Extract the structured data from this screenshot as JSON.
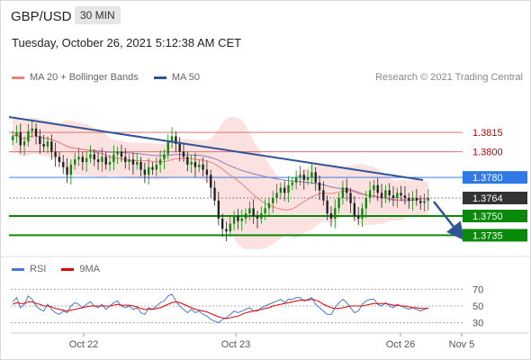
{
  "header": {
    "symbol": "GBP/USD",
    "timeframe": "30 MIN"
  },
  "datetime": "Tuesday, October 26, 2021 5:12:38 AM CET",
  "legend": {
    "items": [
      {
        "label": "MA 20 + Bollinger Bands",
        "color": "#f08080"
      },
      {
        "label": "MA 50",
        "color": "#2f5597"
      }
    ],
    "credit": "Research © 2021 Trading Central"
  },
  "rsi_legend": {
    "items": [
      {
        "label": "RSI",
        "color": "#4a78d8"
      },
      {
        "label": "9MA",
        "color": "#e00000"
      }
    ]
  },
  "chart_data": [
    {
      "type": "line",
      "title": "GBP/USD",
      "ylim": [
        1.3722,
        1.3848
      ],
      "levels": [
        {
          "value": 1.3815,
          "label": "1.3815",
          "kind": "resistance",
          "color": "#e07070",
          "label_color": "#c00000"
        },
        {
          "value": 1.38,
          "label": "1.3800",
          "kind": "resistance",
          "color": "#e07070",
          "label_color": "#c00000"
        },
        {
          "value": 1.378,
          "label": "1.3780",
          "kind": "pivot",
          "color": "#3d7de6",
          "label_bg": "#2f78e8"
        },
        {
          "value": 1.3764,
          "label": "1.3764",
          "kind": "current",
          "color": "#888888",
          "label_bg": "#333333"
        },
        {
          "value": 1.375,
          "label": "1.3750",
          "kind": "support",
          "color": "#0a8a0a",
          "label_bg": "#0a8a0a"
        },
        {
          "value": 1.3735,
          "label": "1.3735",
          "kind": "support",
          "color": "#0a8a0a",
          "label_bg": "#0a8a0a"
        }
      ],
      "x_ticks": [
        "Oct 22",
        "Oct 23",
        "Oct 26",
        "Nov 5"
      ],
      "trendline": {
        "start": 1.3827,
        "end": 1.3778
      },
      "close": [
        1.3812,
        1.3815,
        1.3805,
        1.3808,
        1.3816,
        1.3818,
        1.3812,
        1.3806,
        1.3804,
        1.3808,
        1.38,
        1.3796,
        1.3792,
        1.3788,
        1.3782,
        1.379,
        1.3794,
        1.3796,
        1.3792,
        1.3795,
        1.3798,
        1.3794,
        1.3792,
        1.3796,
        1.379,
        1.3792,
        1.3798,
        1.38,
        1.3796,
        1.3792,
        1.3794,
        1.379,
        1.3792,
        1.3786,
        1.3782,
        1.3788,
        1.3786,
        1.379,
        1.3794,
        1.3798,
        1.3808,
        1.3812,
        1.3806,
        1.38,
        1.3796,
        1.379,
        1.3792,
        1.3788,
        1.379,
        1.3786,
        1.3782,
        1.3772,
        1.3762,
        1.3748,
        1.374,
        1.3738,
        1.3744,
        1.375,
        1.3746,
        1.3748,
        1.3752,
        1.3756,
        1.375,
        1.3748,
        1.3752,
        1.3756,
        1.376,
        1.3764,
        1.3768,
        1.3772,
        1.3768,
        1.3774,
        1.3776,
        1.378,
        1.3782,
        1.3778,
        1.378,
        1.3784,
        1.3776,
        1.377,
        1.3762,
        1.3752,
        1.3748,
        1.3756,
        1.3764,
        1.3772,
        1.3768,
        1.376,
        1.375,
        1.3748,
        1.3756,
        1.3764,
        1.377,
        1.3774,
        1.3768,
        1.3764,
        1.377,
        1.3766,
        1.3764,
        1.3768,
        1.3766,
        1.3764,
        1.3762,
        1.3764,
        1.3762,
        1.376,
        1.3762,
        1.3764
      ]
    },
    {
      "type": "line",
      "title": "",
      "ylim": [
        20,
        80
      ],
      "y_ticks": [
        70,
        50,
        30
      ],
      "series": [
        {
          "name": "RSI",
          "values": [
            55,
            60,
            48,
            52,
            62,
            58,
            50,
            46,
            44,
            52,
            46,
            42,
            40,
            44,
            42,
            50,
            54,
            52,
            48,
            52,
            55,
            50,
            48,
            52,
            46,
            50,
            54,
            56,
            50,
            48,
            50,
            46,
            48,
            42,
            40,
            48,
            46,
            50,
            54,
            56,
            62,
            64,
            56,
            50,
            46,
            42,
            46,
            42,
            44,
            40,
            38,
            34,
            32,
            30,
            34,
            36,
            40,
            44,
            42,
            44,
            46,
            48,
            44,
            44,
            48,
            50,
            52,
            54,
            56,
            58,
            54,
            58,
            58,
            60,
            60,
            56,
            58,
            60,
            52,
            48,
            44,
            40,
            40,
            48,
            54,
            58,
            54,
            48,
            42,
            44,
            52,
            56,
            58,
            58,
            52,
            50,
            54,
            50,
            48,
            52,
            50,
            48,
            46,
            48,
            46,
            44,
            46,
            48
          ]
        },
        {
          "name": "9MA",
          "values": [
            52,
            54,
            53,
            53,
            55,
            55,
            53,
            52,
            50,
            50,
            49,
            47,
            46,
            45,
            44,
            45,
            46,
            47,
            48,
            49,
            50,
            50,
            50,
            50,
            50,
            50,
            51,
            52,
            51,
            51,
            51,
            50,
            49,
            47,
            46,
            46,
            46,
            47,
            48,
            50,
            52,
            54,
            55,
            54,
            52,
            50,
            48,
            46,
            45,
            44,
            43,
            41,
            39,
            37,
            36,
            35,
            36,
            37,
            38,
            40,
            42,
            43,
            44,
            45,
            46,
            47,
            48,
            50,
            51,
            52,
            53,
            54,
            55,
            56,
            57,
            57,
            57,
            58,
            57,
            55,
            52,
            50,
            48,
            47,
            47,
            48,
            49,
            50,
            50,
            50,
            50,
            51,
            52,
            53,
            53,
            53,
            53,
            52,
            51,
            51,
            50,
            50,
            49,
            48,
            48,
            47,
            47,
            47
          ]
        }
      ]
    }
  ]
}
